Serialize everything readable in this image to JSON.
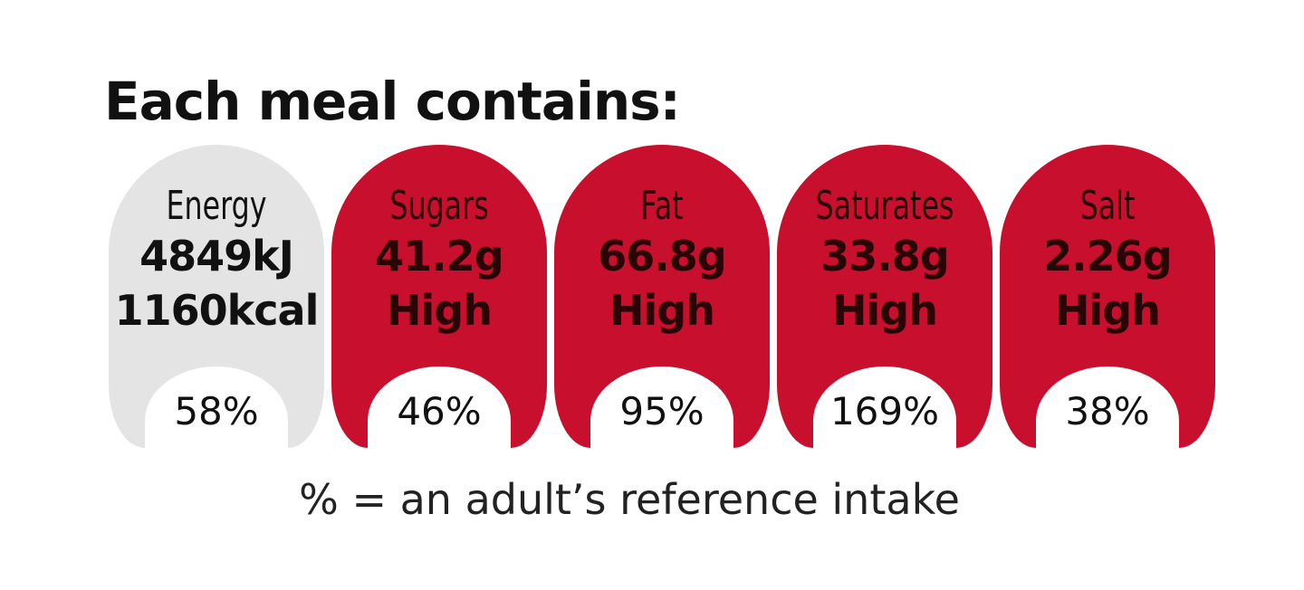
{
  "title": "Each meal contains:",
  "items": [
    {
      "name": "Energy",
      "lines": [
        "4849kJ",
        "1160kcal"
      ],
      "percent": "58%",
      "color": "#e4e4e4",
      "text_color": "#111111"
    },
    {
      "name": "Sugars",
      "lines": [
        "41.2g",
        "High"
      ],
      "percent": "46%",
      "color": "#c8102e",
      "text_color": "#2a0508"
    },
    {
      "name": "Fat",
      "lines": [
        "66.8g",
        "High"
      ],
      "percent": "95%",
      "color": "#c8102e",
      "text_color": "#2a0508"
    },
    {
      "name": "Saturates",
      "lines": [
        "33.8g",
        "High"
      ],
      "percent": "169%",
      "color": "#c8102e",
      "text_color": "#2a0508"
    },
    {
      "name": "Salt",
      "lines": [
        "2.26g",
        "High"
      ],
      "percent": "38%",
      "color": "#c8102e",
      "text_color": "#2a0508"
    }
  ],
  "footnote": "% = an adult’s reference intake"
}
